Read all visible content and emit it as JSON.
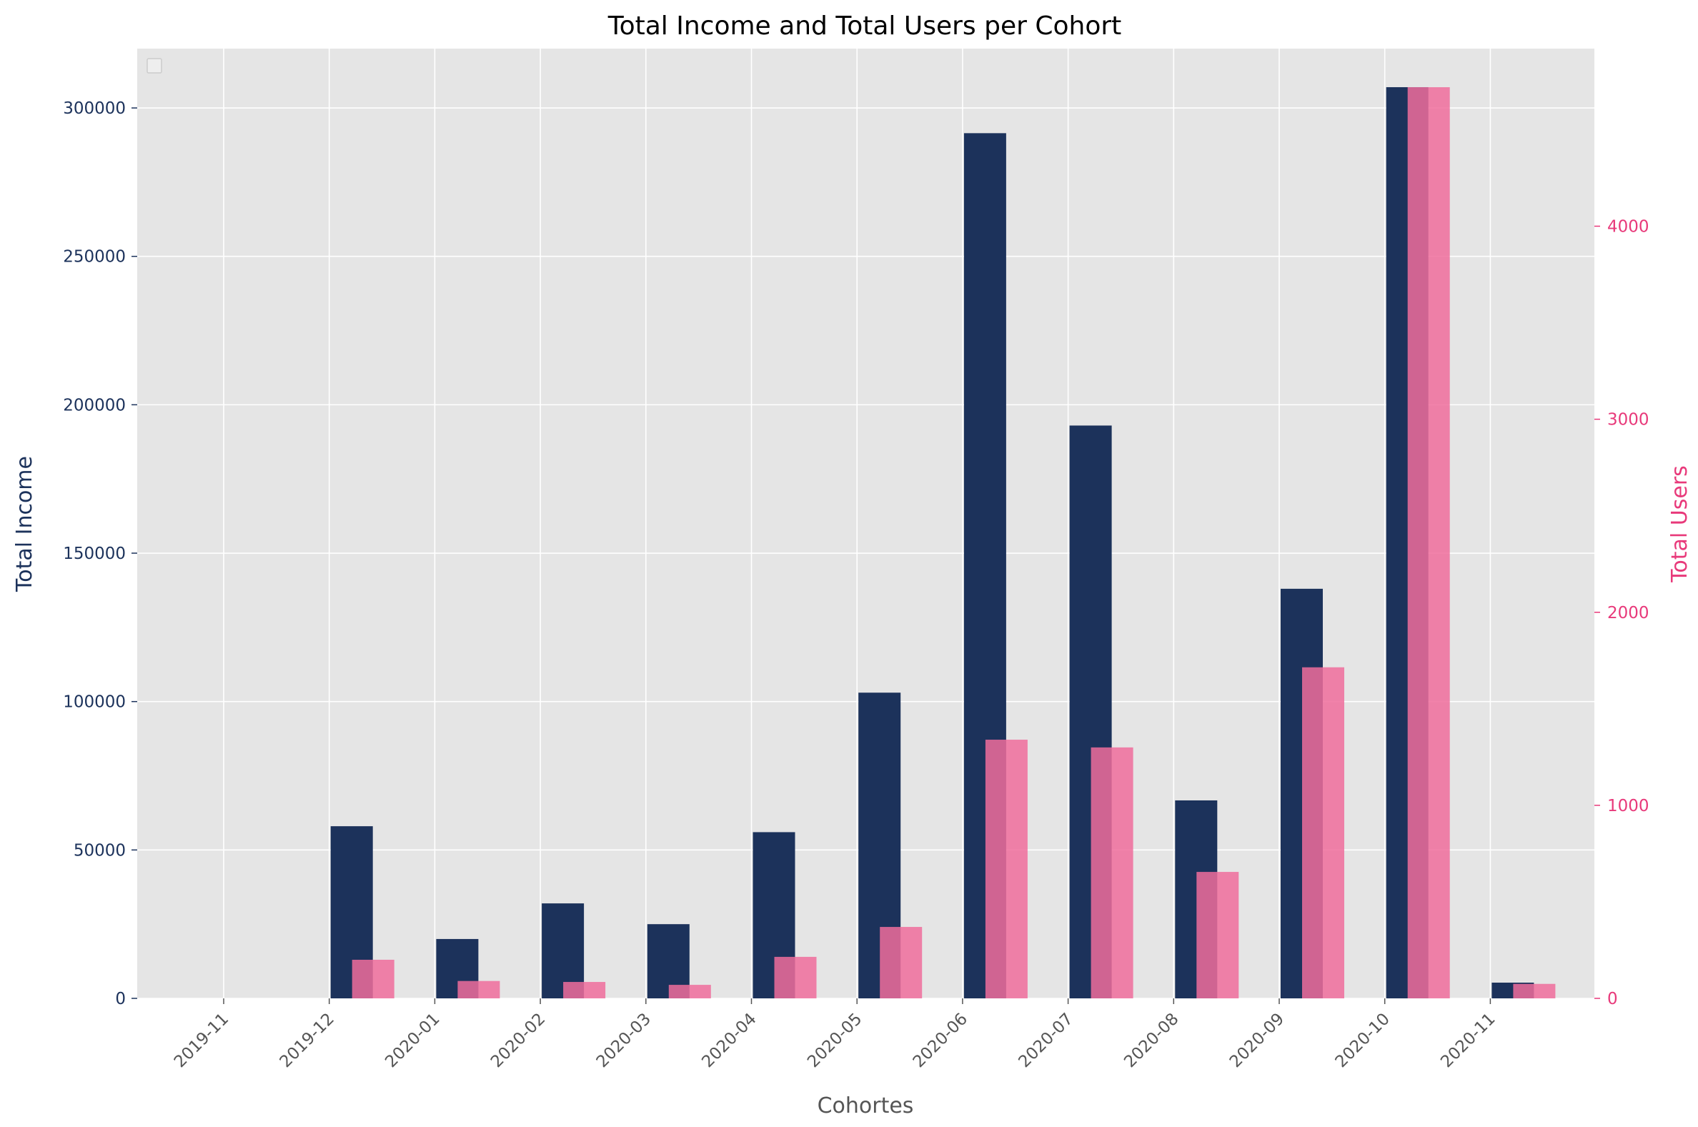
{
  "chart_data": {
    "type": "bar",
    "title": "Total Income and Total Users per Cohort",
    "xlabel": "Cohortes",
    "categories": [
      "2019-11",
      "2019-12",
      "2020-01",
      "2020-02",
      "2020-03",
      "2020-04",
      "2020-05",
      "2020-06",
      "2020-07",
      "2020-08",
      "2020-09",
      "2020-10",
      "2020-11"
    ],
    "y_left": {
      "label": "Total Income",
      "ylim": [
        0,
        320000
      ],
      "ticks": [
        0,
        50000,
        100000,
        150000,
        200000,
        250000,
        300000
      ],
      "color": "#1c325b"
    },
    "y_right": {
      "label": "Total Users",
      "ylim": [
        0,
        4920
      ],
      "ticks": [
        0,
        1000,
        2000,
        3000,
        4000
      ],
      "color": "#e8397a"
    },
    "series": [
      {
        "axis": "left",
        "color": "#1c325b",
        "values": [
          0,
          58000,
          20000,
          32000,
          25000,
          56000,
          103000,
          291500,
          193000,
          66700,
          138000,
          307000,
          5300
        ]
      },
      {
        "axis": "right",
        "color": "#f06d9c",
        "values": [
          0,
          200,
          90,
          85,
          70,
          215,
          370,
          1340,
          1300,
          655,
          1715,
          4720,
          75
        ]
      }
    ],
    "grid": true,
    "legend": "top-left (empty)",
    "background": "#e5e5e5"
  }
}
